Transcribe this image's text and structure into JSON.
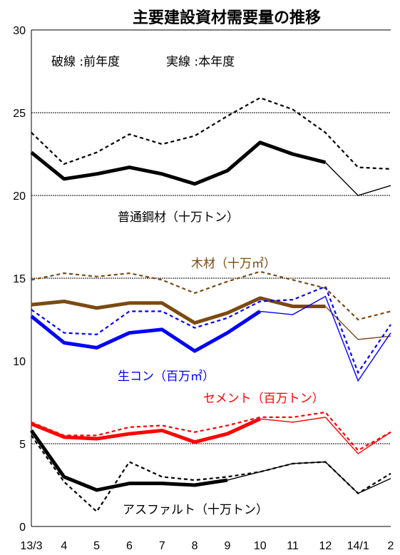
{
  "chart_data": {
    "type": "line",
    "title": "主要建設資材需要量の推移",
    "categories": [
      "13/3",
      "4",
      "5",
      "6",
      "7",
      "8",
      "9",
      "10",
      "11",
      "12",
      "14/1",
      "2"
    ],
    "ylim": [
      0,
      30
    ],
    "yticks": [
      "0",
      "5",
      "10",
      "15",
      "20",
      "25",
      "30"
    ],
    "grid": "horizontal dashed lines at 5, 15, 20, 25",
    "legend_note": {
      "dashed": "破線 :前年度",
      "solid": "実線 :本年度"
    },
    "series": [
      {
        "name": "普通鋼材（十万トン）",
        "color": "#000000",
        "current": [
          22.6,
          21.0,
          21.3,
          21.7,
          21.3,
          20.7,
          21.5,
          23.2,
          22.5,
          22.0,
          20.0,
          20.6
        ],
        "previous": [
          23.8,
          21.9,
          22.6,
          23.7,
          23.1,
          23.6,
          24.8,
          25.9,
          25.2,
          23.8,
          21.7,
          21.6
        ]
      },
      {
        "name": "木材（十万㎡）",
        "color": "#7b4a12",
        "current": [
          13.4,
          13.6,
          13.2,
          13.5,
          13.5,
          12.3,
          12.9,
          13.8,
          13.3,
          13.3,
          11.3,
          11.5
        ],
        "previous": [
          14.9,
          15.3,
          15.1,
          15.3,
          14.9,
          14.1,
          14.8,
          15.4,
          14.9,
          14.4,
          12.5,
          13.0
        ]
      },
      {
        "name": "生コン（百万㎡）",
        "color": "#0000ff",
        "current": [
          12.7,
          11.1,
          10.8,
          11.7,
          11.9,
          10.6,
          11.7,
          13.0,
          12.8,
          13.9,
          8.8,
          11.7
        ],
        "previous": [
          13.1,
          11.7,
          11.6,
          13.0,
          13.0,
          12.0,
          12.6,
          13.6,
          13.7,
          14.5,
          9.3,
          12.2
        ]
      },
      {
        "name": "セメント（百万トン）",
        "color": "#ff0000",
        "current": [
          6.2,
          5.4,
          5.3,
          5.6,
          5.8,
          5.1,
          5.6,
          6.5,
          6.3,
          6.6,
          4.4,
          5.7
        ],
        "previous": [
          6.3,
          5.5,
          5.5,
          6.0,
          6.1,
          5.7,
          6.1,
          6.6,
          6.6,
          6.9,
          4.6,
          5.7
        ]
      },
      {
        "name": "アスファルト（十万トン）",
        "color": "#000000",
        "current": [
          5.8,
          3.0,
          2.2,
          2.6,
          2.6,
          2.5,
          2.8,
          3.3,
          3.8,
          3.9,
          2.0,
          2.9
        ],
        "previous": [
          5.5,
          2.7,
          0.9,
          3.9,
          3.0,
          2.8,
          3.0,
          3.3,
          3.8,
          3.9,
          2.0,
          3.2
        ]
      }
    ]
  }
}
